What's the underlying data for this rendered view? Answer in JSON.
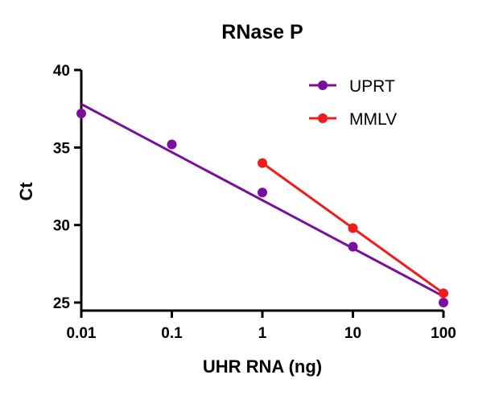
{
  "chart_data": {
    "type": "scatter",
    "title": "RNase P",
    "xlabel": "UHR RNA (ng)",
    "ylabel": "Ct",
    "xscale": "log",
    "xlim": [
      0.01,
      100
    ],
    "ylim": [
      25,
      40
    ],
    "x_ticks": [
      "0.01",
      "0.1",
      "1",
      "10",
      "100"
    ],
    "y_ticks": [
      "25",
      "30",
      "35",
      "40"
    ],
    "legend_position": "top-right",
    "grid": false,
    "series": [
      {
        "name": "UPRT",
        "color": "#7a0f9e",
        "points": [
          {
            "x": 0.01,
            "y": 37.2
          },
          {
            "x": 0.1,
            "y": 35.2
          },
          {
            "x": 1,
            "y": 32.1
          },
          {
            "x": 10,
            "y": 28.6
          },
          {
            "x": 100,
            "y": 25.0
          }
        ],
        "fit_line": {
          "x_start": 0.01,
          "y_start": 37.8,
          "x_end": 100,
          "y_end": 25.4
        }
      },
      {
        "name": "MMLV",
        "color": "#ee1c1c",
        "points": [
          {
            "x": 1,
            "y": 34.0
          },
          {
            "x": 10,
            "y": 29.8
          },
          {
            "x": 100,
            "y": 25.6
          }
        ],
        "fit_line": {
          "x_start": 1,
          "y_start": 34.0,
          "x_end": 100,
          "y_end": 25.6
        }
      }
    ]
  }
}
